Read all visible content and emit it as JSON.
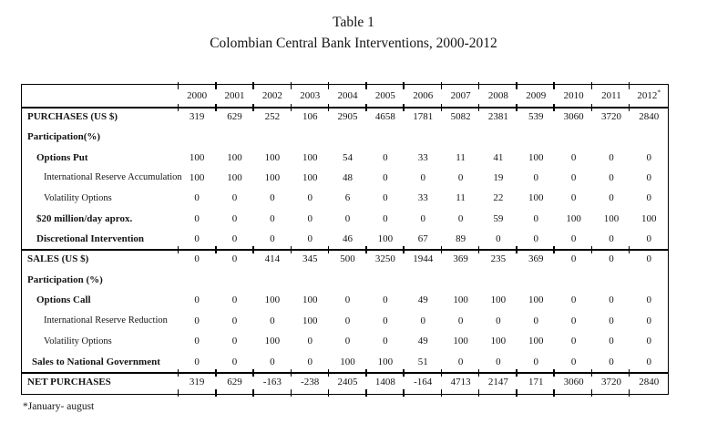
{
  "caption": {
    "line1": "Table 1",
    "line2": "Colombian Central Bank Interventions, 2000-2012"
  },
  "table": {
    "years": [
      "2000",
      "2001",
      "2002",
      "2003",
      "2004",
      "2005",
      "2006",
      "2007",
      "2008",
      "2009",
      "2010",
      "2011",
      "2012*"
    ],
    "rows": [
      {
        "label": "PURCHASES (US $)",
        "bold": true,
        "indent": 0,
        "rule_above": false,
        "values": [
          319,
          629,
          252,
          106,
          2905,
          4658,
          1781,
          5082,
          2381,
          539,
          3060,
          3720,
          2840
        ]
      },
      {
        "label": "Participation(%)",
        "bold": true,
        "indent": 0,
        "rule_above": false,
        "values": []
      },
      {
        "label": "Options Put",
        "bold": true,
        "indent": 2,
        "rule_above": false,
        "values": [
          100,
          100,
          100,
          100,
          54,
          0,
          33,
          11,
          41,
          100,
          0,
          0,
          0
        ]
      },
      {
        "label": "International Reserve Accumulation",
        "bold": false,
        "indent": 3,
        "rule_above": false,
        "values": [
          100,
          100,
          100,
          100,
          48,
          0,
          0,
          0,
          19,
          0,
          0,
          0,
          0
        ]
      },
      {
        "label": "Volatility Options",
        "bold": false,
        "indent": 3,
        "rule_above": false,
        "values": [
          0,
          0,
          0,
          0,
          6,
          0,
          33,
          11,
          22,
          100,
          0,
          0,
          0
        ]
      },
      {
        "label": "$20 million/day aprox.",
        "bold": true,
        "indent": 2,
        "rule_above": false,
        "values": [
          0,
          0,
          0,
          0,
          0,
          0,
          0,
          0,
          59,
          0,
          100,
          100,
          100
        ]
      },
      {
        "label": "Discretional Intervention",
        "bold": true,
        "indent": 2,
        "rule_above": false,
        "values": [
          0,
          0,
          0,
          0,
          46,
          100,
          67,
          89,
          0,
          0,
          0,
          0,
          0
        ]
      },
      {
        "label": "SALES (US $)",
        "bold": true,
        "indent": 0,
        "rule_above": true,
        "values": [
          0,
          0,
          414,
          345,
          500,
          3250,
          1944,
          369,
          235,
          369,
          0,
          0,
          0
        ]
      },
      {
        "label": "Participation (%)",
        "bold": true,
        "indent": 0,
        "rule_above": false,
        "values": []
      },
      {
        "label": "Options Call",
        "bold": true,
        "indent": 2,
        "rule_above": false,
        "values": [
          0,
          0,
          100,
          100,
          0,
          0,
          49,
          100,
          100,
          100,
          0,
          0,
          0
        ]
      },
      {
        "label": "International Reserve Reduction",
        "bold": false,
        "indent": 3,
        "rule_above": false,
        "values": [
          0,
          0,
          0,
          100,
          0,
          0,
          0,
          0,
          0,
          0,
          0,
          0,
          0
        ]
      },
      {
        "label": "Volatility Options",
        "bold": false,
        "indent": 3,
        "rule_above": false,
        "values": [
          0,
          0,
          100,
          0,
          0,
          0,
          49,
          100,
          100,
          100,
          0,
          0,
          0
        ]
      },
      {
        "label": "Sales to National Government",
        "bold": true,
        "indent": 1,
        "rule_above": false,
        "values": [
          0,
          0,
          0,
          0,
          100,
          100,
          51,
          0,
          0,
          0,
          0,
          0,
          0
        ]
      },
      {
        "label": "NET PURCHASES",
        "bold": true,
        "indent": 0,
        "rule_above": true,
        "values": [
          319,
          629,
          -163,
          -238,
          2405,
          1408,
          -164,
          4713,
          2147,
          171,
          3060,
          3720,
          2840
        ]
      }
    ]
  },
  "footnote": "*January- august",
  "colors": {
    "text": "#141414",
    "line": "#000000",
    "background": "#ffffff"
  }
}
